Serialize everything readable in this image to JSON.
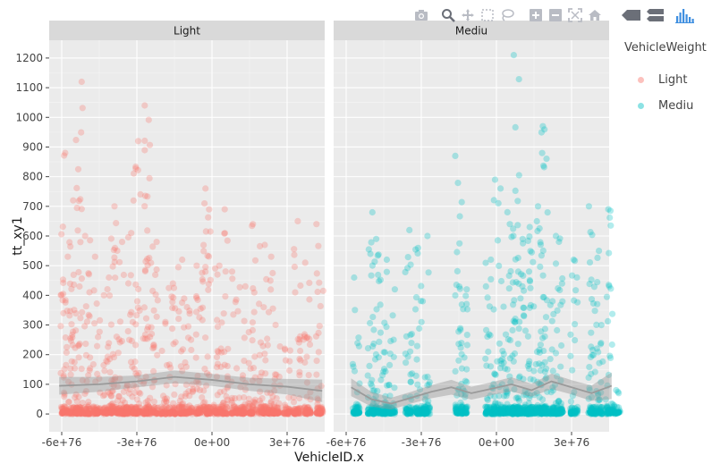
{
  "chart_data": {
    "type": "scatter",
    "title": "",
    "xlabel": "VehicleID.x",
    "ylabel": "tt_xy1",
    "ylim": [
      -60,
      1260
    ],
    "yticks": [
      0,
      100,
      200,
      300,
      400,
      500,
      600,
      700,
      800,
      900,
      1000,
      1100,
      1200
    ],
    "ytick_labels": [
      "0",
      "100",
      "200",
      "300",
      "400",
      "500",
      "600",
      "700",
      "800",
      "900",
      "1000",
      "1100",
      "1200"
    ],
    "xlim": [
      -6.5e+76,
      4.5e+76
    ],
    "xticks": [
      -6e+76,
      -3e+76,
      0,
      3e+76
    ],
    "xtick_labels": [
      "-6e+76",
      "-3e+76",
      "0e+00",
      "3e+76"
    ],
    "grid": true,
    "legend_title": "VehicleWeight",
    "legend_position": "right",
    "panels": [
      {
        "label": "Light",
        "color": "#F8766D",
        "columns_x": [
          -5.9e+76,
          -5.6e+76,
          -5.3e+76,
          -5e+76,
          -4.6e+76,
          -4.2e+76,
          -3.9e+76,
          -3.6e+76,
          -3.3e+76,
          -3e+76,
          -2.6e+76,
          -2.3e+76,
          -1.9e+76,
          -1.6e+76,
          -1.2e+76,
          -9e+75,
          -5e+75,
          -2e+75,
          2e+75,
          5e+75,
          9e+75,
          1.2e+76,
          1.6e+76,
          2e+76,
          2.3e+76,
          2.6e+76,
          3e+76,
          3.4e+76,
          3.8e+76,
          4.3e+76
        ],
        "columns_max": [
          880,
          720,
          1120,
          600,
          530,
          460,
          700,
          580,
          610,
          920,
          1040,
          580,
          310,
          440,
          520,
          360,
          500,
          760,
          500,
          690,
          480,
          430,
          640,
          570,
          530,
          300,
          220,
          650,
          510,
          640
        ],
        "smooth_x": [
          -6.1e+76,
          -4.5e+76,
          -3e+76,
          -1.5e+76,
          0,
          1.5e+76,
          3e+76,
          4.4e+76
        ],
        "smooth_y": [
          95,
          100,
          110,
          125,
          115,
          100,
          92,
          78
        ],
        "smooth_band": [
          30,
          25,
          20,
          22,
          20,
          22,
          26,
          38
        ]
      },
      {
        "label": "Mediu",
        "color": "#00BFC4",
        "columns_x": [
          -5.6e+76,
          -5e+76,
          -4.8e+76,
          -4.5e+76,
          -4.2e+76,
          -3.5e+76,
          -3.1e+76,
          -2.8e+76,
          -1.5e+76,
          -1.3e+76,
          -3e+75,
          0.0,
          3e+75,
          6e+75,
          8e+75,
          1e+76,
          1.2e+76,
          1.4e+76,
          1.7e+76,
          1.9e+76,
          2.2e+76,
          2.5e+76,
          3.1e+76,
          3.8e+76,
          4.1e+76,
          4.5e+76,
          4.8e+76
        ],
        "columns_max": [
          460,
          680,
          590,
          520,
          420,
          620,
          560,
          600,
          870,
          420,
          520,
          790,
          760,
          640,
          1210,
          590,
          480,
          630,
          700,
          970,
          380,
          600,
          520,
          700,
          550,
          690,
          80
        ],
        "smooth_x": [
          -5.8e+76,
          -5e+76,
          -4.2e+76,
          -3.4e+76,
          -2.6e+76,
          -1.8e+76,
          -1e+76,
          -2e+75,
          6e+75,
          1.4e+76,
          2.2e+76,
          3e+76,
          3.8e+76,
          4.6e+76
        ],
        "smooth_y": [
          90,
          50,
          35,
          55,
          75,
          90,
          70,
          85,
          100,
          80,
          110,
          90,
          70,
          95
        ],
        "smooth_band": [
          30,
          25,
          20,
          20,
          22,
          25,
          22,
          22,
          24,
          22,
          26,
          24,
          26,
          45
        ]
      }
    ]
  },
  "modebar": {
    "icons": [
      "camera-icon",
      "zoom-icon",
      "pan-icon",
      "box-select-icon",
      "lasso-icon",
      "zoom-in-icon",
      "zoom-out-icon",
      "autoscale-icon",
      "home-icon",
      "hover-closest-icon",
      "hover-compare-icon",
      "plotly-logo-icon"
    ]
  }
}
